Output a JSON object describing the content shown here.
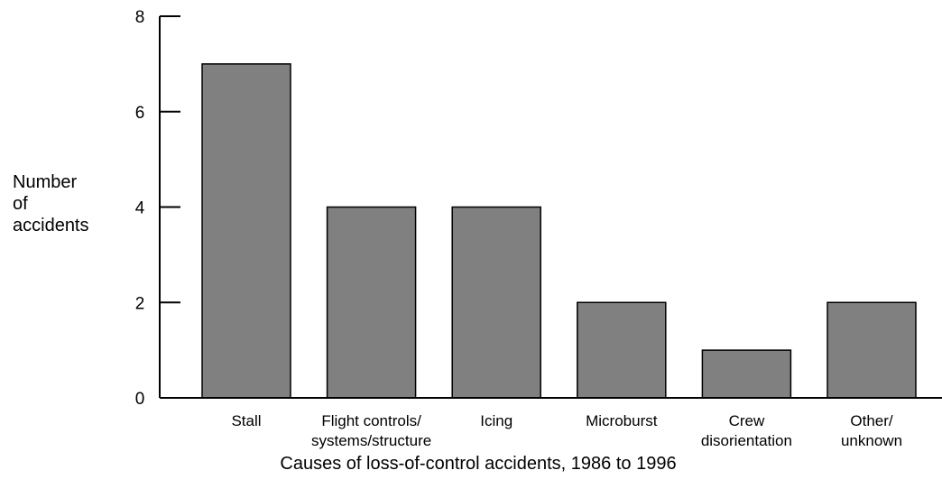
{
  "chart_data": {
    "type": "bar",
    "x_label": "Causes of loss-of-control accidents, 1986 to 1996",
    "y_label": "Number\nof\naccidents",
    "categories": [
      "Stall",
      "Flight controls/\nsystems/structure",
      "Icing",
      "Microburst",
      "Crew\ndisorientation",
      "Other/\nunknown"
    ],
    "values": [
      7,
      4,
      4,
      2,
      1,
      2
    ],
    "color": "#808080",
    "ylim": [
      0,
      8
    ],
    "yticks": [
      0,
      2,
      4,
      6,
      8
    ],
    "grid": false
  }
}
